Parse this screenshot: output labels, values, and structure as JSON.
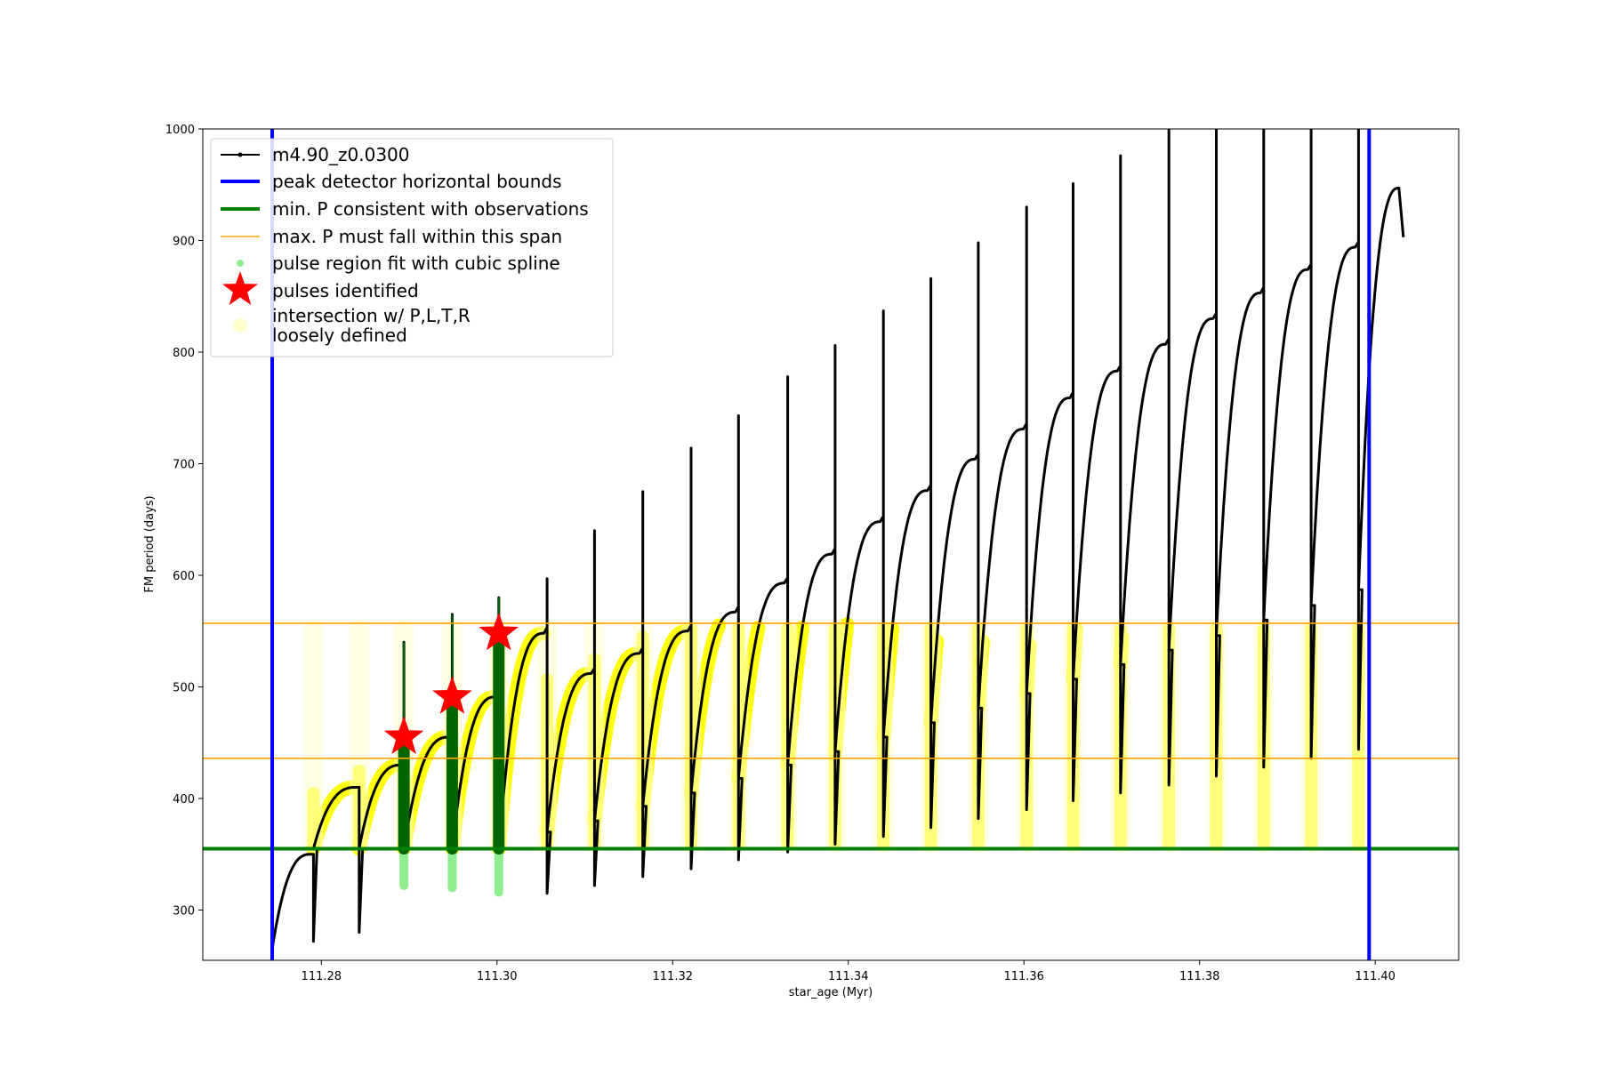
{
  "chart_data": {
    "type": "scatter",
    "title": "",
    "xlabel": "star_age (Myr)",
    "ylabel": "FM period (days)",
    "xlim": [
      111.2665,
      111.4095
    ],
    "ylim": [
      255,
      1000
    ],
    "xticks": [
      "111.28",
      "111.30",
      "111.32",
      "111.34",
      "111.36",
      "111.38",
      "111.40"
    ],
    "xtick_values": [
      111.28,
      111.3,
      111.32,
      111.34,
      111.36,
      111.38,
      111.4
    ],
    "yticks": [
      "300",
      "400",
      "500",
      "600",
      "700",
      "800",
      "900",
      "1000"
    ],
    "ytick_values": [
      300,
      400,
      500,
      600,
      700,
      800,
      900,
      1000
    ],
    "grid": false,
    "legend_position": "top-left",
    "colors": {
      "track": "#000000",
      "bounds": "#0000ff",
      "minP": "#008000",
      "maxP": "#ffa500",
      "spline_fit": "#90ee90",
      "pulse_region": "#006400",
      "pulses": "#ff0000",
      "intersection": "#ffff00",
      "loose": "#ffffcc"
    },
    "legend": [
      {
        "label": "m4.90_z0.0300",
        "marker": "line-dot",
        "color": "#000000"
      },
      {
        "label": "peak detector horizontal bounds",
        "marker": "line-thick",
        "color": "#0000ff"
      },
      {
        "label": "min. P consistent with observations",
        "marker": "line-thick",
        "color": "#008000"
      },
      {
        "label": "max. P must fall within this span",
        "marker": "line-thin",
        "color": "#ffa500"
      },
      {
        "label": "pulse region fit with cubic spline",
        "marker": "dot",
        "color": "#90ee90"
      },
      {
        "label": "pulses identified",
        "marker": "star",
        "color": "#ff0000"
      },
      {
        "label": "intersection w/ P,L,T,R",
        "marker": "none",
        "color": "#ffff00"
      },
      {
        "label": "loosely defined",
        "marker": "circle",
        "color": "#ffffcc"
      }
    ],
    "peak_detector_bounds": [
      111.2744,
      111.3993
    ],
    "min_P": 355,
    "max_P_span": [
      436,
      557
    ],
    "pulses": [
      {
        "age": 111.2894,
        "start": 355,
        "peak": 455,
        "spike": 540,
        "dip": 322
      },
      {
        "age": 111.2949,
        "start": 355,
        "peak": 491,
        "spike": 565,
        "dip": 320
      },
      {
        "age": 111.3002,
        "start": 355,
        "peak": 548,
        "spike": 580,
        "dip": 316
      },
      {
        "age": 111.3057,
        "start": 370,
        "peak": 512,
        "spike": 597,
        "dip": 315
      },
      {
        "age": 111.3111,
        "start": 380,
        "peak": 530,
        "spike": 640,
        "dip": 322
      },
      {
        "age": 111.3166,
        "start": 393,
        "peak": 550,
        "spike": 675,
        "dip": 330
      },
      {
        "age": 111.3221,
        "start": 405,
        "peak": 567,
        "spike": 714,
        "dip": 337
      },
      {
        "age": 111.3275,
        "start": 418,
        "peak": 593,
        "spike": 743,
        "dip": 345
      },
      {
        "age": 111.3331,
        "start": 430,
        "peak": 619,
        "spike": 778,
        "dip": 352
      },
      {
        "age": 111.3385,
        "start": 442,
        "peak": 648,
        "spike": 806,
        "dip": 359
      },
      {
        "age": 111.344,
        "start": 455,
        "peak": 676,
        "spike": 837,
        "dip": 366
      },
      {
        "age": 111.3494,
        "start": 468,
        "peak": 704,
        "spike": 866,
        "dip": 374
      },
      {
        "age": 111.3548,
        "start": 481,
        "peak": 731,
        "spike": 898,
        "dip": 382
      },
      {
        "age": 111.3603,
        "start": 494,
        "peak": 759,
        "spike": 930,
        "dip": 390
      },
      {
        "age": 111.3656,
        "start": 507,
        "peak": 783,
        "spike": 951,
        "dip": 398
      },
      {
        "age": 111.371,
        "start": 520,
        "peak": 807,
        "spike": 976,
        "dip": 405
      },
      {
        "age": 111.3765,
        "start": 533,
        "peak": 830,
        "spike": 1000,
        "dip": 412
      },
      {
        "age": 111.3819,
        "start": 546,
        "peak": 853,
        "spike": 1000,
        "dip": 420
      },
      {
        "age": 111.3873,
        "start": 560,
        "peak": 874,
        "spike": 1000,
        "dip": 428
      },
      {
        "age": 111.3927,
        "start": 573,
        "peak": 894,
        "spike": 1000,
        "dip": 436
      },
      {
        "age": 111.3981,
        "start": 587,
        "peak": 912,
        "spike": 1000,
        "dip": 444
      }
    ],
    "track_start": {
      "age": 111.2744,
      "dip": 265
    },
    "first_segment": {
      "start": 265,
      "peak": 350
    },
    "track_end": {
      "age": 111.4032,
      "peak": 947,
      "end": 903
    },
    "early_pulses": [
      {
        "age": 111.2791,
        "start": 355,
        "peak": 410,
        "dip": 272
      },
      {
        "age": 111.2843,
        "start": 355,
        "peak": 430,
        "dip": 280
      }
    ]
  }
}
